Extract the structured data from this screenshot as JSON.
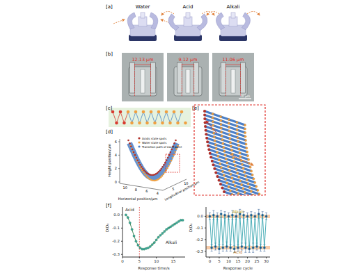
{
  "panels": {
    "a": {
      "label": "[a]",
      "states": [
        "Water",
        "Acid",
        "Alkali"
      ]
    },
    "b": {
      "label": "[b]",
      "widths": [
        "12.13 μm",
        "9.12 μm",
        "11.06 μm"
      ],
      "scale_bar": "10 μm"
    },
    "c": {
      "label": "[c]"
    },
    "d": {
      "label": "[d]",
      "y_label": "Height position/μm",
      "x_label": "Horizontal position/μm",
      "z_label": "Longitudinal position/μm",
      "yticks": [
        0,
        2,
        4,
        6
      ],
      "xticks": [
        10,
        8,
        6,
        4
      ],
      "zticks": [
        5,
        10
      ],
      "legend": [
        {
          "text": "Acidic state spots",
          "color": "#b0302a"
        },
        {
          "text": "Water state spots",
          "color": "#f0a040"
        },
        {
          "text": "Transition path of each point",
          "color": "#4a7fc8"
        }
      ]
    },
    "e": {
      "label": "[e]"
    },
    "f": {
      "label": "[f]"
    }
  },
  "chart_data": [
    {
      "type": "line",
      "x_label": "Response time/s",
      "y_label": "D/D₀",
      "annotations": [
        "Acid",
        "Alkali"
      ],
      "color": "#2f7d4a",
      "marker": "circle",
      "xlim": [
        0,
        18.5
      ],
      "xticks": [
        0,
        5,
        10,
        15
      ],
      "ylim": [
        -0.32,
        0.06
      ],
      "yticks": [
        {
          "value": 0,
          "label": "0.0"
        },
        -0.1,
        -0.2,
        -0.3
      ],
      "reference_x": 5,
      "x": [
        1,
        1.6,
        2.2,
        2.8,
        3.4,
        4,
        4.6,
        5.2,
        5.8,
        6.4,
        7,
        7.6,
        8.2,
        8.8,
        9.4,
        10,
        10.6,
        11.2,
        11.8,
        12.4,
        13,
        13.6,
        14.2,
        14.8,
        15.4,
        16,
        16.6,
        17.2,
        17.8
      ],
      "values": [
        0.0,
        -0.02,
        -0.06,
        -0.11,
        -0.16,
        -0.2,
        -0.23,
        -0.25,
        -0.26,
        -0.26,
        -0.255,
        -0.25,
        -0.24,
        -0.225,
        -0.21,
        -0.19,
        -0.17,
        -0.155,
        -0.14,
        -0.125,
        -0.11,
        -0.1,
        -0.09,
        -0.08,
        -0.07,
        -0.06,
        -0.05,
        -0.04,
        -0.04
      ]
    },
    {
      "type": "line",
      "x_label": "Response cycle",
      "y_label": "D/D₀",
      "color": "#3aa6b0",
      "marker": "circle",
      "xlim": [
        -2,
        32
      ],
      "xticks": [
        0,
        5,
        10,
        15,
        20,
        25,
        30
      ],
      "ylim": [
        -0.35,
        0.08
      ],
      "yticks": [
        {
          "value": 0,
          "label": "0.0"
        },
        -0.1,
        -0.2,
        -0.3
      ],
      "bands": [
        {
          "label": "Alkali",
          "value": 0.0
        },
        {
          "label": "Acid",
          "value": -0.27
        }
      ],
      "x": [
        0,
        1,
        2,
        3,
        4,
        5,
        6,
        7,
        8,
        9,
        10,
        11,
        12,
        13,
        14,
        15,
        16,
        17,
        18,
        19,
        20,
        21,
        22,
        23,
        24,
        25,
        26,
        27,
        28,
        29,
        30
      ],
      "values": [
        0.0,
        -0.27,
        0.01,
        -0.26,
        0.0,
        -0.28,
        0.02,
        -0.27,
        0.01,
        -0.26,
        0.0,
        -0.27,
        0.01,
        -0.28,
        0.0,
        -0.27,
        0.02,
        -0.26,
        0.01,
        -0.27,
        0.0,
        -0.28,
        0.01,
        -0.27,
        0.0,
        -0.26,
        0.02,
        -0.27,
        0.01,
        -0.27,
        0.0
      ],
      "errors": [
        0.03,
        0.03,
        0.04,
        0.03,
        0.03,
        0.04,
        0.03,
        0.03,
        0.03,
        0.04,
        0.03,
        0.03,
        0.04,
        0.03,
        0.03,
        0.03,
        0.04,
        0.03,
        0.03,
        0.04,
        0.03,
        0.03,
        0.03,
        0.04,
        0.03,
        0.03,
        0.04,
        0.03,
        0.03,
        0.03,
        0.03
      ]
    }
  ]
}
